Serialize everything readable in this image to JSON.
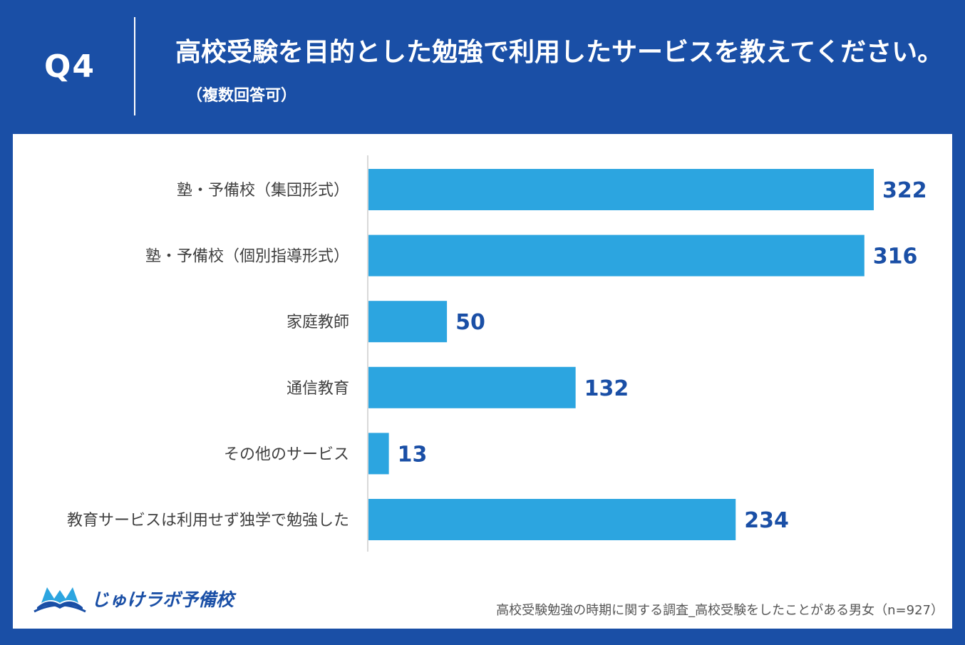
{
  "header": {
    "question_no": "Q4",
    "title": "高校受験を目的とした勉強で利用したサービスを教えてください。",
    "note": "（複数回答可）"
  },
  "chart_data": {
    "type": "bar",
    "orientation": "horizontal",
    "categories": [
      "塾・予備校（集団形式）",
      "塾・予備校（個別指導形式）",
      "家庭教師",
      "通信教育",
      "その他のサービス",
      "教育サービスは利用せず独学で勉強した"
    ],
    "values": [
      322,
      316,
      50,
      132,
      13,
      234
    ],
    "xlim": [
      0,
      322
    ],
    "bar_color": "#2ca5e0",
    "label_color": "#1a4fa6"
  },
  "footer": {
    "logo_text": "じゅけラボ予備校",
    "source": "高校受験勉強の時期に関する調査_高校受験をしたことがある男女（n=927）"
  }
}
